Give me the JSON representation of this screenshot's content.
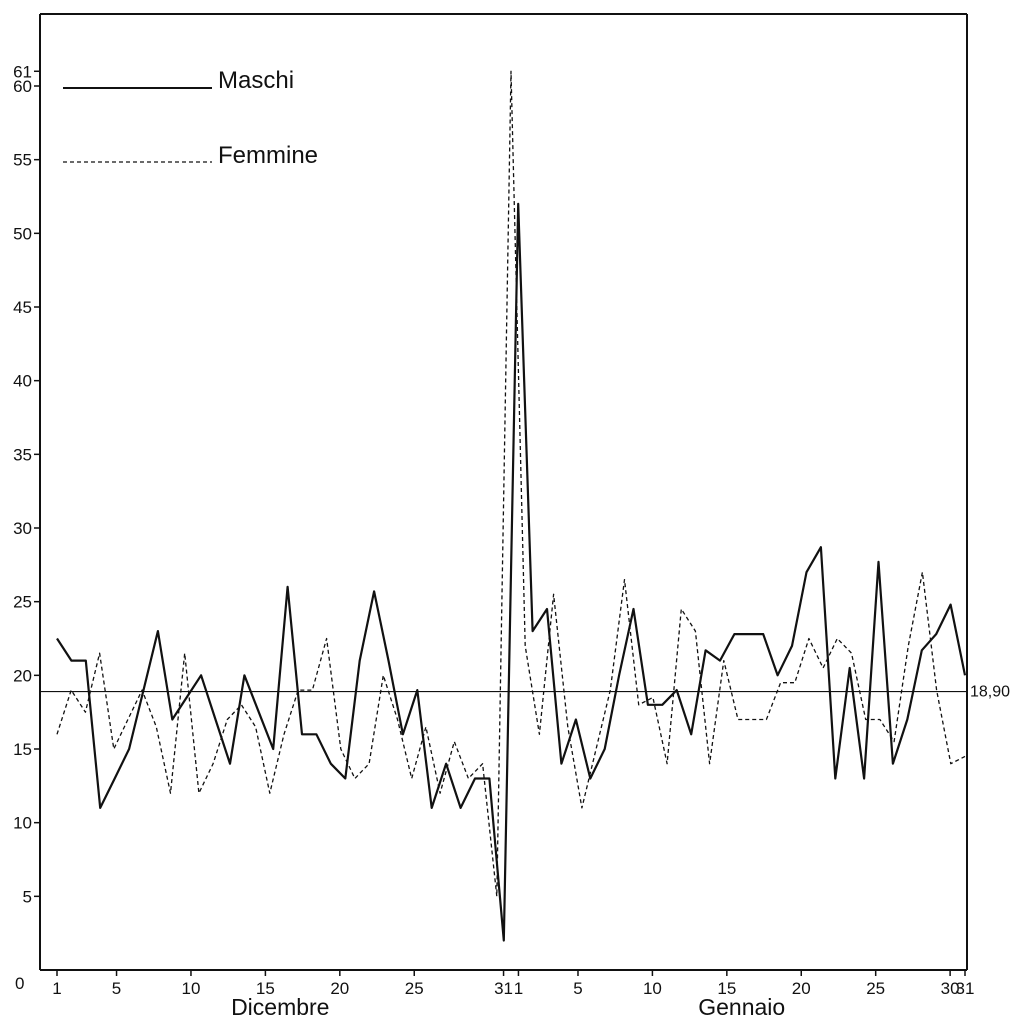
{
  "chart_data": {
    "type": "line",
    "title": "",
    "xlabel": "",
    "ylabel": "",
    "ylim": [
      0,
      63
    ],
    "y_ticks": [
      {
        "value": 5,
        "label": "5"
      },
      {
        "value": 10,
        "label": "10"
      },
      {
        "value": 15,
        "label": "15"
      },
      {
        "value": 20,
        "label": "20"
      },
      {
        "value": 25,
        "label": "25"
      },
      {
        "value": 30,
        "label": "30"
      },
      {
        "value": 35,
        "label": "35"
      },
      {
        "value": 40,
        "label": "40"
      },
      {
        "value": 45,
        "label": "45"
      },
      {
        "value": 50,
        "label": "50"
      },
      {
        "value": 55,
        "label": "55"
      },
      {
        "value": 60,
        "label": "60"
      },
      {
        "value": 61,
        "label": "61"
      }
    ],
    "origin_label": "0",
    "x_ticks": [
      {
        "day": 1,
        "label": "1"
      },
      {
        "day": 5,
        "label": "5"
      },
      {
        "day": 10,
        "label": "10"
      },
      {
        "day": 15,
        "label": "15"
      },
      {
        "day": 20,
        "label": "20"
      },
      {
        "day": 25,
        "label": "25"
      },
      {
        "day": 31,
        "label": "31"
      },
      {
        "day": 32,
        "label": "1"
      },
      {
        "day": 36,
        "label": "5"
      },
      {
        "day": 41,
        "label": "10"
      },
      {
        "day": 46,
        "label": "15"
      },
      {
        "day": 51,
        "label": "20"
      },
      {
        "day": 56,
        "label": "25"
      },
      {
        "day": 61,
        "label": "30"
      },
      {
        "day": 62,
        "label": "31"
      }
    ],
    "months": [
      {
        "label": "Dicembre",
        "from_day": 1,
        "to_day": 31
      },
      {
        "label": "Gennaio",
        "from_day": 32,
        "to_day": 62
      }
    ],
    "reference_line": {
      "value": 18.9,
      "label": "18,90"
    },
    "legend": {
      "placement": "top-left"
    },
    "series": [
      {
        "name": "Maschi",
        "style": "solid",
        "values": [
          22.5,
          21,
          21,
          11,
          13,
          15,
          19,
          23,
          17,
          18.5,
          20,
          17,
          14,
          20,
          17.5,
          15,
          26,
          16,
          16,
          14,
          13,
          21,
          25.7,
          21,
          16,
          19,
          11,
          14,
          11,
          13,
          13,
          2,
          52,
          23,
          24.5,
          14,
          17,
          13,
          15,
          20,
          24.5,
          18,
          18,
          19,
          16,
          21.7,
          21,
          22.8,
          22.8,
          22.8,
          20,
          22,
          27,
          28.7,
          13,
          20.5,
          13,
          27.7,
          14,
          17,
          21.7,
          22.8,
          24.8,
          20
        ]
      },
      {
        "name": "Femmine",
        "style": "dashed",
        "values": [
          16,
          19,
          17.5,
          21.5,
          15,
          17,
          19,
          16.5,
          12,
          21.5,
          12,
          14,
          17,
          18,
          16.5,
          12,
          16,
          19,
          19,
          22.5,
          15,
          13,
          14,
          20,
          17,
          13,
          16.5,
          12,
          15.5,
          13,
          14,
          5,
          61,
          22,
          16,
          25.5,
          16.5,
          11,
          15,
          19,
          26.5,
          18,
          18.5,
          14,
          24.5,
          23,
          14,
          21,
          17,
          17,
          17,
          19.5,
          19.5,
          22.5,
          20.5,
          22.5,
          21.5,
          17,
          17,
          15.5,
          22,
          27,
          19,
          14,
          14.5
        ]
      }
    ]
  }
}
